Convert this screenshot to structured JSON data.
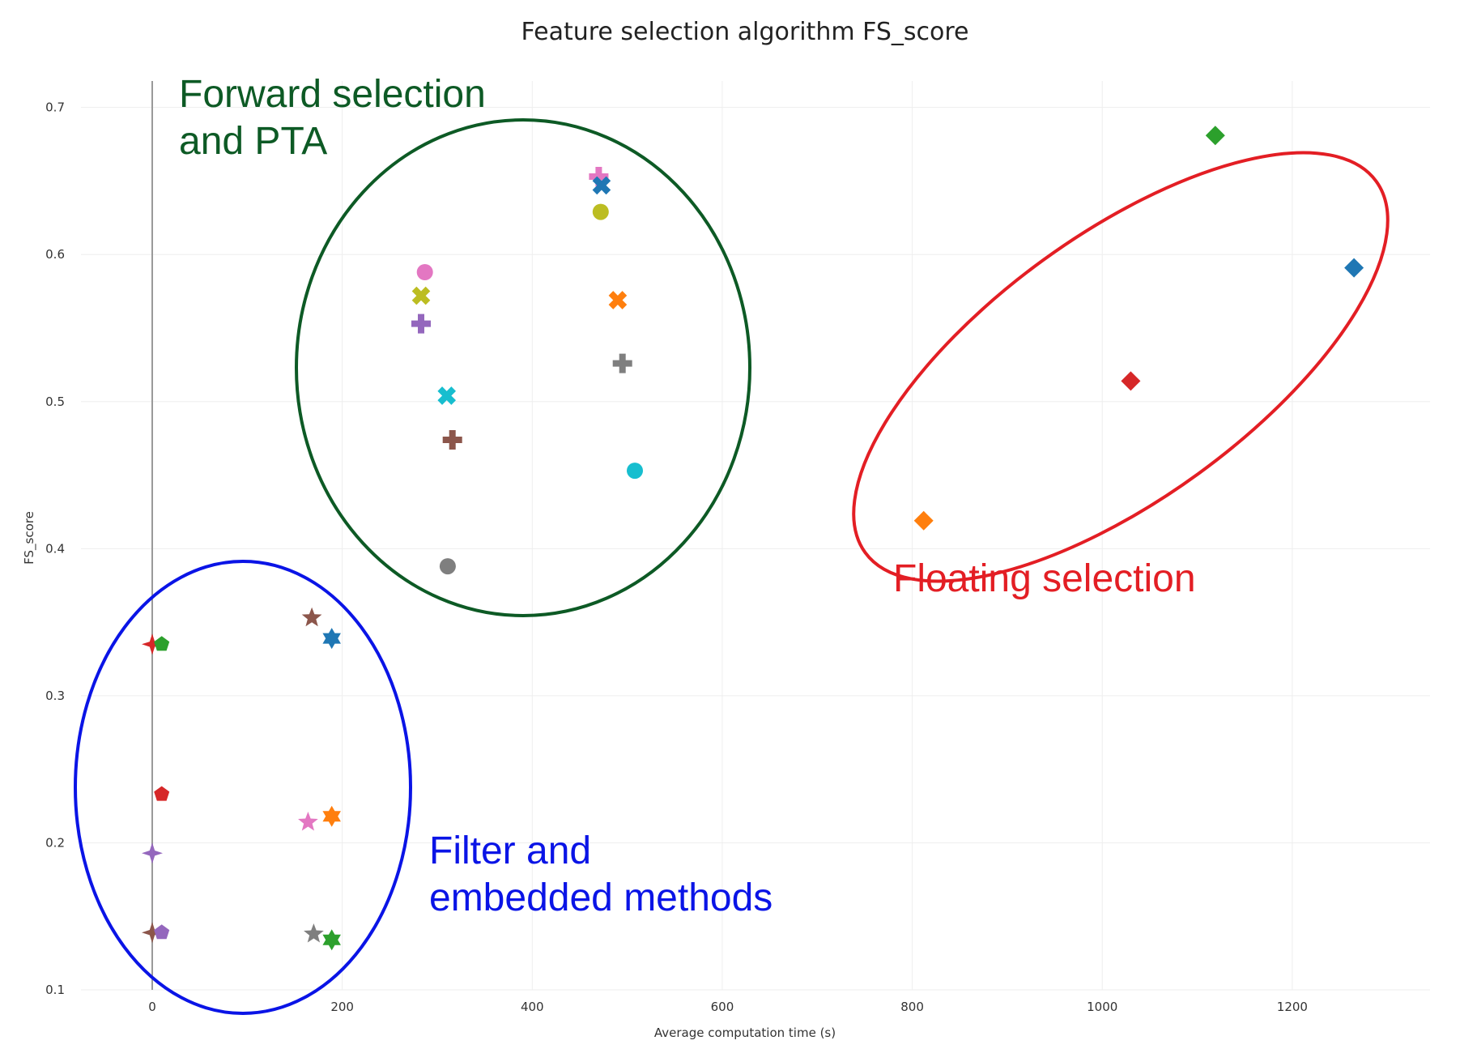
{
  "chart_data": {
    "type": "scatter",
    "title": "Feature selection algorithm FS_score",
    "xlabel": "Average computation time (s)",
    "ylabel": "FS_score",
    "xlim": [
      -75,
      1345
    ],
    "ylim": [
      0.1,
      0.718
    ],
    "x_ticks": [
      0,
      200,
      400,
      600,
      800,
      1000,
      1200
    ],
    "y_ticks": [
      0.1,
      0.2,
      0.3,
      0.4,
      0.5,
      0.6,
      0.7
    ],
    "grid": true,
    "points": [
      {
        "x": 470,
        "y": 0.653,
        "marker": "cross",
        "color": "#e377c2"
      },
      {
        "x": 473,
        "y": 0.647,
        "marker": "x",
        "color": "#1f77b4"
      },
      {
        "x": 472,
        "y": 0.629,
        "marker": "circle",
        "color": "#bcbd22"
      },
      {
        "x": 287,
        "y": 0.588,
        "marker": "circle",
        "color": "#e377c2"
      },
      {
        "x": 283,
        "y": 0.572,
        "marker": "x",
        "color": "#bcbd22"
      },
      {
        "x": 490,
        "y": 0.569,
        "marker": "x",
        "color": "#ff7f0e"
      },
      {
        "x": 283,
        "y": 0.553,
        "marker": "cross",
        "color": "#9467bd"
      },
      {
        "x": 495,
        "y": 0.526,
        "marker": "cross",
        "color": "#7f7f7f"
      },
      {
        "x": 310,
        "y": 0.504,
        "marker": "x",
        "color": "#17becf"
      },
      {
        "x": 316,
        "y": 0.474,
        "marker": "cross",
        "color": "#8c564b"
      },
      {
        "x": 508,
        "y": 0.453,
        "marker": "circle",
        "color": "#17becf"
      },
      {
        "x": 311,
        "y": 0.388,
        "marker": "circle",
        "color": "#7f7f7f"
      },
      {
        "x": 1119,
        "y": 0.681,
        "marker": "diamond",
        "color": "#2ca02c"
      },
      {
        "x": 1265,
        "y": 0.591,
        "marker": "diamond",
        "color": "#1f77b4"
      },
      {
        "x": 1030,
        "y": 0.514,
        "marker": "diamond",
        "color": "#d62728"
      },
      {
        "x": 812,
        "y": 0.419,
        "marker": "diamond",
        "color": "#ff7f0e"
      },
      {
        "x": 168,
        "y": 0.353,
        "marker": "star",
        "color": "#8c564b"
      },
      {
        "x": 189,
        "y": 0.339,
        "marker": "hexagram",
        "color": "#1f77b4"
      },
      {
        "x": 0,
        "y": 0.335,
        "marker": "star-diamond",
        "color": "#d62728"
      },
      {
        "x": 10,
        "y": 0.335,
        "marker": "pentagon",
        "color": "#2ca02c"
      },
      {
        "x": 10,
        "y": 0.233,
        "marker": "pentagon",
        "color": "#d62728"
      },
      {
        "x": 189,
        "y": 0.218,
        "marker": "hexagram",
        "color": "#ff7f0e"
      },
      {
        "x": 164,
        "y": 0.214,
        "marker": "star",
        "color": "#e377c2"
      },
      {
        "x": 0,
        "y": 0.193,
        "marker": "star-diamond",
        "color": "#9467bd"
      },
      {
        "x": 0,
        "y": 0.139,
        "marker": "star-diamond",
        "color": "#8c564b"
      },
      {
        "x": 10,
        "y": 0.139,
        "marker": "pentagon",
        "color": "#9467bd"
      },
      {
        "x": 170,
        "y": 0.138,
        "marker": "star",
        "color": "#7f7f7f"
      },
      {
        "x": 189,
        "y": 0.134,
        "marker": "hexagram",
        "color": "#2ca02c"
      }
    ],
    "annotations": [
      {
        "lines": [
          "Forward selection",
          "and PTA"
        ],
        "color": "#0d5a25"
      },
      {
        "lines": [
          "Floating selection"
        ],
        "color": "#e31e24"
      },
      {
        "lines": [
          "Filter and",
          "embedded methods"
        ],
        "color": "#0a14e6"
      }
    ]
  }
}
